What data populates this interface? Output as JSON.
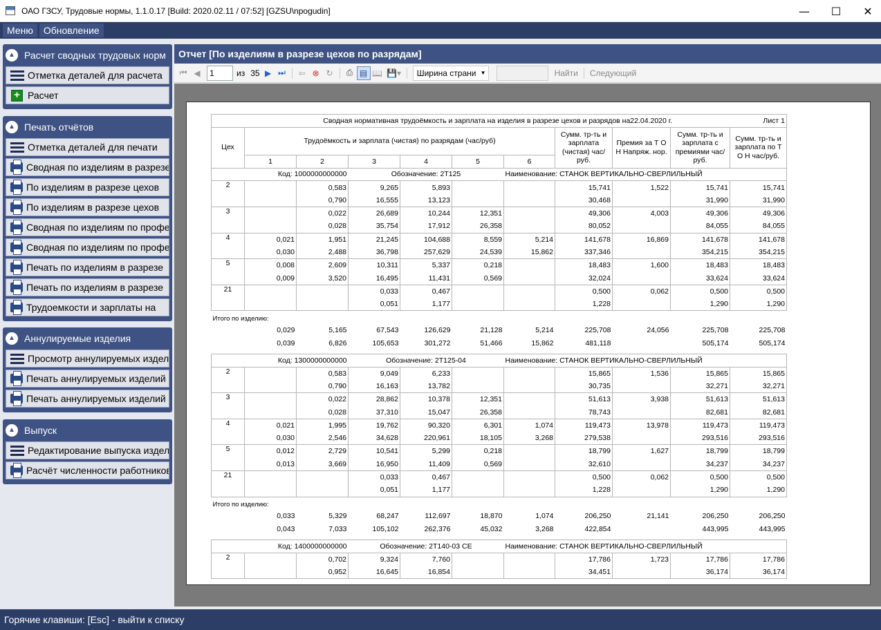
{
  "window": {
    "title": "ОАО ГЗСУ, Трудовые нормы, 1.1.0.17 [Build: 2020.02.11 / 07:52] [GZSU\\npogudin]",
    "minimize_icon": "minimize-icon",
    "maximize_icon": "maximize-icon",
    "close_icon": "close-icon"
  },
  "menu": {
    "items": [
      "Меню",
      "Обновление"
    ]
  },
  "sidebar": {
    "groups": [
      {
        "title": "Расчет сводных трудовых норм",
        "items": [
          {
            "icon": "list-icon",
            "label": "Отметка деталей для расчета"
          },
          {
            "icon": "add-icon",
            "label": "Расчет"
          }
        ]
      },
      {
        "title": "Печать отчётов",
        "items": [
          {
            "icon": "list-icon",
            "label": "Отметка деталей для печати"
          },
          {
            "icon": "print-icon",
            "label": "Сводная по изделиям в разрезе цехов"
          },
          {
            "icon": "print-icon",
            "label": "По изделиям в разрезе цехов"
          },
          {
            "icon": "print-icon",
            "label": "По изделиям в разрезе цехов"
          },
          {
            "icon": "print-icon",
            "label": "Сводная по изделиям по профессиям"
          },
          {
            "icon": "print-icon",
            "label": "Сводная по изделиям по профессиям"
          },
          {
            "icon": "print-icon",
            "label": "Печать по изделиям в разрезе"
          },
          {
            "icon": "print-icon",
            "label": "Печать по изделиям в разрезе"
          },
          {
            "icon": "print-icon",
            "label": "Трудоемкости и зарплаты на"
          }
        ]
      },
      {
        "title": "Аннулируемые изделия",
        "items": [
          {
            "icon": "list-icon",
            "label": "Просмотр аннулируемых изделий"
          },
          {
            "icon": "print-icon",
            "label": "Печать аннулируемых изделий"
          },
          {
            "icon": "print-icon",
            "label": "Печать аннулируемых изделий"
          }
        ]
      },
      {
        "title": "Выпуск",
        "items": [
          {
            "icon": "list-icon",
            "label": "Редактирование выпуска изделий"
          },
          {
            "icon": "print-icon",
            "label": "Расчёт численности работников"
          }
        ]
      }
    ]
  },
  "report": {
    "title": "Отчет [По изделиям в разрезе цехов по разрядам]"
  },
  "toolbar": {
    "page": "1",
    "of_label": "из",
    "total_pages": "35",
    "zoom": "Ширина страни",
    "search_placeholder": "",
    "find_label": "Найти",
    "next_label": "Следующий"
  },
  "doc": {
    "header": "Сводная нормативная трудоёмкость и зарплата на изделия в разрезе цехов и разрядов на22.04.2020 г.",
    "sheet": "Лист 1",
    "col_shop": "Цех",
    "col_grades": "Трудоёмкость и зарплата (чистая) по разрядам (час/руб)",
    "grades": [
      "1",
      "2",
      "3",
      "4",
      "5",
      "6"
    ],
    "col_sum": "Сумм. тр-ть и зарплата (чистая) час/руб.",
    "col_bonus": "Премия за Т О Н Напряж. нор.",
    "col_sum_bonus": "Сумм. тр-ть и зарплата с премиями час/руб.",
    "col_sum_ton": "Сумм. тр-ть и зарплата по Т О Н час/руб.",
    "total_label": "Итого по изделию:",
    "products": [
      {
        "code": "Код: 1000000000000",
        "designation": "Обозначение: 2Т125",
        "name": "Наименование: СТАНОК ВЕРТИКАЛЬНО-СВЕРЛИЛЬНЫЙ",
        "rows": [
          {
            "shop": "2",
            "a": [
              "",
              "0,583",
              "9,265",
              "5,893",
              "",
              "",
              "15,741",
              "1,522",
              "15,741",
              "15,741"
            ],
            "b": [
              "",
              "0,790",
              "16,555",
              "13,123",
              "",
              "",
              "30,468",
              "",
              "31,990",
              "31,990"
            ]
          },
          {
            "shop": "3",
            "a": [
              "",
              "0,022",
              "26,689",
              "10,244",
              "12,351",
              "",
              "49,306",
              "4,003",
              "49,306",
              "49,306"
            ],
            "b": [
              "",
              "0,028",
              "35,754",
              "17,912",
              "26,358",
              "",
              "80,052",
              "",
              "84,055",
              "84,055"
            ]
          },
          {
            "shop": "4",
            "a": [
              "0,021",
              "1,951",
              "21,245",
              "104,688",
              "8,559",
              "5,214",
              "141,678",
              "16,869",
              "141,678",
              "141,678"
            ],
            "b": [
              "0,030",
              "2,488",
              "36,798",
              "257,629",
              "24,539",
              "15,862",
              "337,346",
              "",
              "354,215",
              "354,215"
            ]
          },
          {
            "shop": "5",
            "a": [
              "0,008",
              "2,609",
              "10,311",
              "5,337",
              "0,218",
              "",
              "18,483",
              "1,600",
              "18,483",
              "18,483"
            ],
            "b": [
              "0,009",
              "3,520",
              "16,495",
              "11,431",
              "0,569",
              "",
              "32,024",
              "",
              "33,624",
              "33,624"
            ]
          },
          {
            "shop": "21",
            "a": [
              "",
              "",
              "0,033",
              "0,467",
              "",
              "",
              "0,500",
              "0,062",
              "0,500",
              "0,500"
            ],
            "b": [
              "",
              "",
              "0,051",
              "1,177",
              "",
              "",
              "1,228",
              "",
              "1,290",
              "1,290"
            ]
          }
        ],
        "total": {
          "a": [
            "0,029",
            "5,165",
            "67,543",
            "126,629",
            "21,128",
            "5,214",
            "225,708",
            "24,056",
            "225,708",
            "225,708"
          ],
          "b": [
            "0,039",
            "6,826",
            "105,653",
            "301,272",
            "51,466",
            "15,862",
            "481,118",
            "",
            "505,174",
            "505,174"
          ]
        }
      },
      {
        "code": "Код: 1300000000000",
        "designation": "Обозначение: 2Т125-04",
        "name": "Наименование: СТАНОК ВЕРТИКАЛЬНО-СВЕРЛИЛЬНЫЙ",
        "rows": [
          {
            "shop": "2",
            "a": [
              "",
              "0,583",
              "9,049",
              "6,233",
              "",
              "",
              "15,865",
              "1,536",
              "15,865",
              "15,865"
            ],
            "b": [
              "",
              "0,790",
              "16,163",
              "13,782",
              "",
              "",
              "30,735",
              "",
              "32,271",
              "32,271"
            ]
          },
          {
            "shop": "3",
            "a": [
              "",
              "0,022",
              "28,862",
              "10,378",
              "12,351",
              "",
              "51,613",
              "3,938",
              "51,613",
              "51,613"
            ],
            "b": [
              "",
              "0,028",
              "37,310",
              "15,047",
              "26,358",
              "",
              "78,743",
              "",
              "82,681",
              "82,681"
            ]
          },
          {
            "shop": "4",
            "a": [
              "0,021",
              "1,995",
              "19,762",
              "90,320",
              "6,301",
              "1,074",
              "119,473",
              "13,978",
              "119,473",
              "119,473"
            ],
            "b": [
              "0,030",
              "2,546",
              "34,628",
              "220,961",
              "18,105",
              "3,268",
              "279,538",
              "",
              "293,516",
              "293,516"
            ]
          },
          {
            "shop": "5",
            "a": [
              "0,012",
              "2,729",
              "10,541",
              "5,299",
              "0,218",
              "",
              "18,799",
              "1,627",
              "18,799",
              "18,799"
            ],
            "b": [
              "0,013",
              "3,669",
              "16,950",
              "11,409",
              "0,569",
              "",
              "32,610",
              "",
              "34,237",
              "34,237"
            ]
          },
          {
            "shop": "21",
            "a": [
              "",
              "",
              "0,033",
              "0,467",
              "",
              "",
              "0,500",
              "0,062",
              "0,500",
              "0,500"
            ],
            "b": [
              "",
              "",
              "0,051",
              "1,177",
              "",
              "",
              "1,228",
              "",
              "1,290",
              "1,290"
            ]
          }
        ],
        "total": {
          "a": [
            "0,033",
            "5,329",
            "68,247",
            "112,697",
            "18,870",
            "1,074",
            "206,250",
            "21,141",
            "206,250",
            "206,250"
          ],
          "b": [
            "0,043",
            "7,033",
            "105,102",
            "262,376",
            "45,032",
            "3,268",
            "422,854",
            "",
            "443,995",
            "443,995"
          ]
        }
      },
      {
        "code": "Код: 1400000000000",
        "designation": "Обозначение: 2Т140-03 СЕ",
        "name": "Наименование: СТАНОК ВЕРТИКАЛЬНО-СВЕРЛИЛЬНЫЙ",
        "rows": [
          {
            "shop": "2",
            "a": [
              "",
              "0,702",
              "9,324",
              "7,760",
              "",
              "",
              "17,786",
              "1,723",
              "17,786",
              "17,786"
            ],
            "b": [
              "",
              "0,952",
              "16,645",
              "16,854",
              "",
              "",
              "34,451",
              "",
              "36,174",
              "36,174"
            ]
          }
        ]
      }
    ]
  },
  "status": {
    "text": "Горячие клавиши: [Esc] - выйти к списку"
  }
}
